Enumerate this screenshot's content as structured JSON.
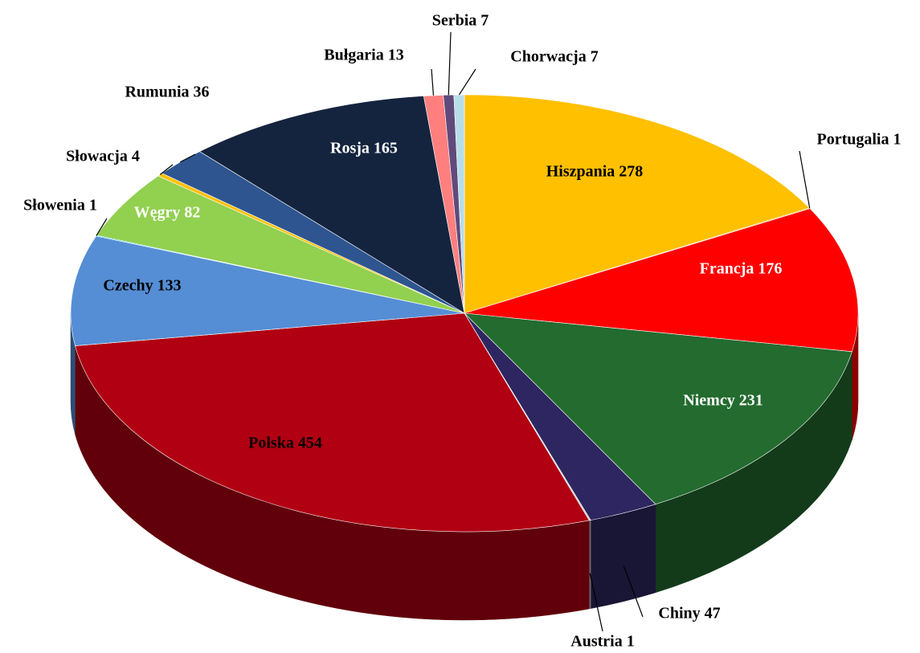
{
  "chart_data": {
    "type": "pie3d",
    "values": [
      278,
      1,
      176,
      231,
      47,
      1,
      454,
      133,
      1,
      82,
      4,
      36,
      165,
      13,
      7,
      7
    ],
    "value_labels": [
      "Hiszpania 278",
      "Portugalia 1",
      "Francja 176",
      "Niemcy 231",
      "Chiny 47",
      "Austria 1",
      "Polska 454",
      "Czechy 133",
      "Słowenia 1",
      "Węgry 82",
      "Słowacja 4",
      "Rumunia 36",
      "Rosja 165",
      "Bułgaria 13",
      "Serbia 7",
      "Chorwacja 7"
    ],
    "colors": [
      "#ffc000",
      "#ff9900",
      "#ff0000",
      "#236b2f",
      "#2e2660",
      "#c8c8c8",
      "#b00012",
      "#558ed5",
      "#00b0f0",
      "#92d050",
      "#ffc000",
      "#2e5590",
      "#14243f",
      "#ff7f7f",
      "#604a7b",
      "#b7dee8"
    ]
  }
}
